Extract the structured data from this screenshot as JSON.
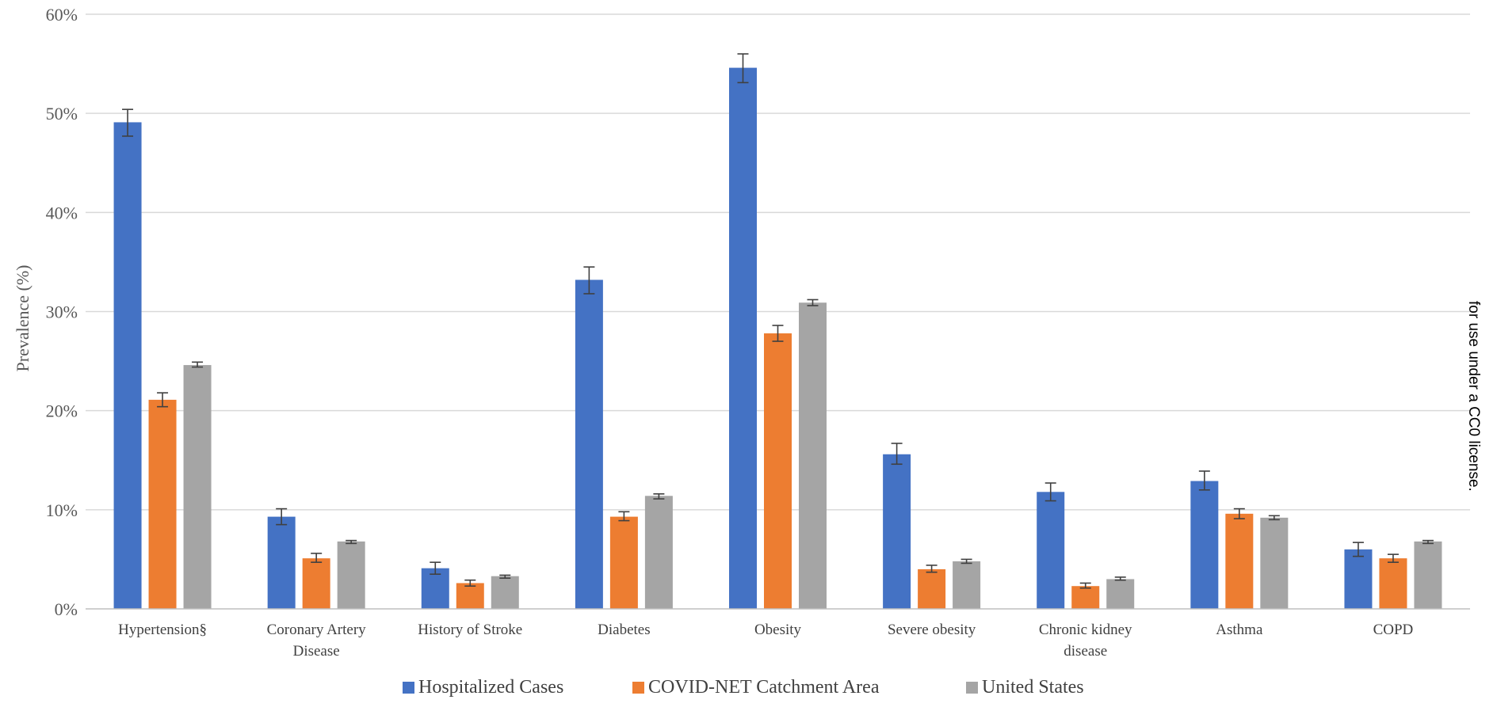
{
  "chart_data": {
    "type": "bar",
    "ylabel": "Prevalence (%)",
    "xlabel": "",
    "ylim": [
      0,
      60
    ],
    "yticks": [
      0,
      10,
      20,
      30,
      40,
      50,
      60
    ],
    "ytick_labels": [
      "0%",
      "10%",
      "20%",
      "30%",
      "40%",
      "50%",
      "60%"
    ],
    "grid": true,
    "legend_position": "bottom",
    "categories": [
      [
        "Hypertension§"
      ],
      [
        "Coronary Artery",
        "Disease"
      ],
      [
        "History of Stroke"
      ],
      [
        "Diabetes"
      ],
      [
        "Obesity"
      ],
      [
        "Severe obesity"
      ],
      [
        "Chronic kidney",
        "disease"
      ],
      [
        "Asthma"
      ],
      [
        "COPD"
      ]
    ],
    "series": [
      {
        "name": "Hospitalized Cases",
        "color": "#4472C4",
        "values": [
          49.1,
          9.3,
          4.1,
          33.2,
          54.6,
          15.6,
          11.8,
          12.9,
          6.0
        ],
        "error_low": [
          47.7,
          8.5,
          3.5,
          31.8,
          53.1,
          14.6,
          10.9,
          12.0,
          5.3
        ],
        "error_high": [
          50.4,
          10.1,
          4.7,
          34.5,
          56.0,
          16.7,
          12.7,
          13.9,
          6.7
        ]
      },
      {
        "name": "COVID-NET Catchment Area",
        "color": "#ED7D31",
        "values": [
          21.1,
          5.1,
          2.6,
          9.3,
          27.8,
          4.0,
          2.3,
          9.6,
          5.1
        ],
        "error_low": [
          20.4,
          4.7,
          2.3,
          8.9,
          27.0,
          3.7,
          2.1,
          9.1,
          4.7
        ],
        "error_high": [
          21.8,
          5.6,
          2.9,
          9.8,
          28.6,
          4.4,
          2.6,
          10.1,
          5.5
        ]
      },
      {
        "name": "United States",
        "color": "#A5A5A5",
        "values": [
          24.6,
          6.8,
          3.3,
          11.4,
          30.9,
          4.8,
          3.0,
          9.2,
          6.8
        ],
        "error_low": [
          24.4,
          6.6,
          3.1,
          11.1,
          30.6,
          4.6,
          2.9,
          9.0,
          6.6
        ],
        "error_high": [
          24.9,
          6.9,
          3.4,
          11.6,
          31.2,
          5.0,
          3.2,
          9.4,
          6.9
        ]
      }
    ]
  },
  "side_note": {
    "lines": [
      "for use under a CC0 license."
    ]
  }
}
